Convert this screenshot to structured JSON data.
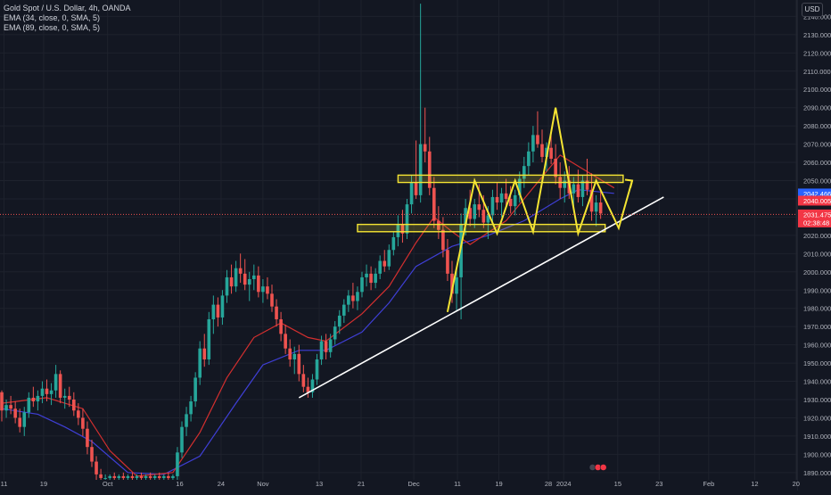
{
  "header": {
    "symbol_line": "Gold Spot / U.S. Dollar, 4h, OANDA",
    "indicators": [
      "EMA (34, close, 0, SMA, 5)",
      "EMA (89, close, 0, SMA, 5)"
    ],
    "currency": "USD"
  },
  "colors": {
    "background": "#131722",
    "grid": "#1e222d",
    "candle_up": "#26a69a",
    "candle_down": "#ef5350",
    "ema34": "#d32f2f",
    "ema89": "#3f3fd6",
    "drawing_yellow": "#f5e533",
    "trendline": "#ffffff",
    "tag_blue": "#2962ff",
    "tag_red": "#f23645"
  },
  "chart_data": {
    "type": "candlestick",
    "title": "Gold Spot / U.S. Dollar, 4h, OANDA",
    "ylim": [
      1886,
      2149
    ],
    "y_ticks": [
      2140,
      2130,
      2120,
      2110,
      2100,
      2090,
      2080,
      2070,
      2060,
      2050,
      2040,
      2030,
      2020,
      2010,
      2000,
      1990,
      1980,
      1970,
      1960,
      1950,
      1940,
      1930,
      1920,
      1910,
      1900,
      1890
    ],
    "y_tick_labels": [
      "2140.000",
      "2130.000",
      "2120.000",
      "2110.000",
      "2100.000",
      "2090.000",
      "2080.000",
      "2070.000",
      "2060.000",
      "2050.000",
      "2040.000",
      "2030.000",
      "2020.000",
      "2010.000",
      "2000.000",
      "1990.000",
      "1980.000",
      "1970.000",
      "1960.000",
      "1950.000",
      "1940.000",
      "1930.000",
      "1920.000",
      "1910.000",
      "1900.000",
      "1890.000"
    ],
    "x_ticks": [
      {
        "label": "11",
        "pos": 0.5
      },
      {
        "label": "19",
        "pos": 9.3
      },
      {
        "label": "Oct",
        "pos": 23.5
      },
      {
        "label": "16",
        "pos": 39.5
      },
      {
        "label": "24",
        "pos": 48.7
      },
      {
        "label": "Nov",
        "pos": 58
      },
      {
        "label": "13",
        "pos": 70.5
      },
      {
        "label": "21",
        "pos": 79.8
      },
      {
        "label": "Dec",
        "pos": 91.5
      },
      {
        "label": "11",
        "pos": 101.2
      },
      {
        "label": "19",
        "pos": 110.4
      },
      {
        "label": "28",
        "pos": 121.4
      },
      {
        "label": "2024",
        "pos": 124.8
      },
      {
        "label": "15",
        "pos": 136.8
      },
      {
        "label": "23",
        "pos": 146
      },
      {
        "label": "Feb",
        "pos": 157
      },
      {
        "label": "12",
        "pos": 167.2
      },
      {
        "label": "20",
        "pos": 176.4
      }
    ],
    "price_tags": [
      {
        "label": "2042.466",
        "value": 2042.466,
        "series": "EMA (89, close, 0, SMA, 5)"
      },
      {
        "label": "2040.005",
        "value": 2040.005,
        "series": "EMA (34, close, 0, SMA, 5)"
      },
      {
        "label": "2031.475",
        "value": 2031.475,
        "series": "last price"
      },
      {
        "label": "02:38:48",
        "value": 2027.5,
        "series": "countdown"
      }
    ],
    "last_price": 2031.475,
    "candles": [
      [
        1934,
        1935,
        1918,
        1924
      ],
      [
        1924,
        1930,
        1920,
        1927
      ],
      [
        1927,
        1932,
        1922,
        1925
      ],
      [
        1925,
        1929,
        1917,
        1920
      ],
      [
        1920,
        1925,
        1912,
        1915
      ],
      [
        1915,
        1926,
        1910,
        1923
      ],
      [
        1923,
        1934,
        1920,
        1931
      ],
      [
        1931,
        1937,
        1926,
        1929
      ],
      [
        1929,
        1935,
        1924,
        1932
      ],
      [
        1932,
        1940,
        1928,
        1936
      ],
      [
        1936,
        1941,
        1929,
        1933
      ],
      [
        1933,
        1939,
        1927,
        1935
      ],
      [
        1935,
        1949,
        1931,
        1944
      ],
      [
        1944,
        1946,
        1928,
        1931
      ],
      [
        1931,
        1936,
        1925,
        1932
      ],
      [
        1932,
        1937,
        1926,
        1930
      ],
      [
        1930,
        1934,
        1921,
        1924
      ],
      [
        1924,
        1928,
        1916,
        1920
      ],
      [
        1920,
        1925,
        1910,
        1914
      ],
      [
        1914,
        1918,
        1900,
        1904
      ],
      [
        1904,
        1908,
        1893,
        1896
      ],
      [
        1896,
        1899,
        1886,
        1889
      ],
      [
        1889,
        1892,
        1886,
        1887
      ],
      [
        1887,
        1889,
        1886,
        1887
      ],
      [
        1887,
        1889,
        1886,
        1888
      ],
      [
        1888,
        1890,
        1886,
        1887
      ],
      [
        1887,
        1889,
        1886,
        1888
      ],
      [
        1888,
        1890,
        1886,
        1887
      ],
      [
        1887,
        1889,
        1886,
        1888
      ],
      [
        1888,
        1890,
        1886,
        1887
      ],
      [
        1887,
        1889,
        1886,
        1888
      ],
      [
        1888,
        1890,
        1886,
        1887
      ],
      [
        1887,
        1889,
        1886,
        1888
      ],
      [
        1888,
        1890,
        1886,
        1887
      ],
      [
        1887,
        1889,
        1886,
        1888
      ],
      [
        1888,
        1890,
        1886,
        1887
      ],
      [
        1887,
        1889,
        1886,
        1888
      ],
      [
        1888,
        1890,
        1886,
        1887
      ],
      [
        1887,
        1889,
        1886,
        1888
      ],
      [
        1888,
        1904,
        1886,
        1901
      ],
      [
        1901,
        1918,
        1898,
        1915
      ],
      [
        1915,
        1926,
        1910,
        1922
      ],
      [
        1922,
        1932,
        1918,
        1929
      ],
      [
        1929,
        1945,
        1926,
        1942
      ],
      [
        1942,
        1962,
        1938,
        1958
      ],
      [
        1958,
        1966,
        1948,
        1952
      ],
      [
        1952,
        1978,
        1949,
        1974
      ],
      [
        1974,
        1987,
        1966,
        1982
      ],
      [
        1982,
        1986,
        1970,
        1975
      ],
      [
        1975,
        1990,
        1971,
        1987
      ],
      [
        1987,
        2001,
        1983,
        1997
      ],
      [
        1997,
        2004,
        1988,
        1992
      ],
      [
        1992,
        2006,
        1989,
        2002
      ],
      [
        2002,
        2010,
        1994,
        1999
      ],
      [
        1999,
        2007,
        1990,
        1993
      ],
      [
        1993,
        2000,
        1984,
        1996
      ],
      [
        1996,
        2004,
        1990,
        1998
      ],
      [
        1998,
        2003,
        1986,
        1989
      ],
      [
        1989,
        1996,
        1983,
        1992
      ],
      [
        1992,
        1997,
        1985,
        1988
      ],
      [
        1988,
        1993,
        1978,
        1981
      ],
      [
        1981,
        1985,
        1970,
        1974
      ],
      [
        1974,
        1978,
        1962,
        1966
      ],
      [
        1966,
        1971,
        1955,
        1958
      ],
      [
        1958,
        1963,
        1948,
        1952
      ],
      [
        1952,
        1959,
        1944,
        1955
      ],
      [
        1955,
        1960,
        1940,
        1944
      ],
      [
        1944,
        1949,
        1934,
        1937
      ],
      [
        1937,
        1942,
        1931,
        1934
      ],
      [
        1934,
        1944,
        1931,
        1941
      ],
      [
        1941,
        1955,
        1938,
        1952
      ],
      [
        1952,
        1965,
        1949,
        1962
      ],
      [
        1962,
        1966,
        1952,
        1956
      ],
      [
        1956,
        1966,
        1953,
        1963
      ],
      [
        1963,
        1973,
        1960,
        1970
      ],
      [
        1970,
        1979,
        1966,
        1976
      ],
      [
        1976,
        1985,
        1972,
        1982
      ],
      [
        1982,
        1990,
        1978,
        1987
      ],
      [
        1987,
        1994,
        1980,
        1984
      ],
      [
        1984,
        1992,
        1979,
        1989
      ],
      [
        1989,
        2000,
        1986,
        1997
      ],
      [
        1997,
        2004,
        1992,
        1999
      ],
      [
        1999,
        2003,
        1990,
        1994
      ],
      [
        1994,
        2002,
        1991,
        1999
      ],
      [
        1999,
        2009,
        1996,
        2006
      ],
      [
        2006,
        2012,
        2000,
        2003
      ],
      [
        2003,
        2015,
        2001,
        2012
      ],
      [
        2012,
        2022,
        2009,
        2019
      ],
      [
        2019,
        2031,
        2014,
        2026
      ],
      [
        2026,
        2034,
        2016,
        2021
      ],
      [
        2021,
        2040,
        2018,
        2037
      ],
      [
        2037,
        2053,
        2032,
        2049
      ],
      [
        2049,
        2072,
        2040,
        2042
      ],
      [
        2042,
        2147,
        2038,
        2070
      ],
      [
        2070,
        2090,
        2060,
        2066
      ],
      [
        2066,
        2074,
        2042,
        2046
      ],
      [
        2046,
        2052,
        2024,
        2028
      ],
      [
        2028,
        2036,
        2018,
        2023
      ],
      [
        2023,
        2030,
        2008,
        2012
      ],
      [
        2012,
        2018,
        1995,
        1999
      ],
      [
        1999,
        2006,
        1983,
        1988
      ],
      [
        1988,
        2002,
        1979,
        1997
      ],
      [
        1997,
        2032,
        1974,
        2026
      ],
      [
        2026,
        2040,
        2020,
        2035
      ],
      [
        2035,
        2045,
        2025,
        2029
      ],
      [
        2029,
        2040,
        2024,
        2037
      ],
      [
        2037,
        2048,
        2030,
        2034
      ],
      [
        2034,
        2042,
        2024,
        2027
      ],
      [
        2027,
        2036,
        2018,
        2031
      ],
      [
        2031,
        2045,
        2027,
        2041
      ],
      [
        2041,
        2049,
        2034,
        2038
      ],
      [
        2038,
        2046,
        2030,
        2043
      ],
      [
        2043,
        2051,
        2035,
        2040
      ],
      [
        2040,
        2047,
        2032,
        2036
      ],
      [
        2036,
        2045,
        2031,
        2042
      ],
      [
        2042,
        2055,
        2038,
        2051
      ],
      [
        2051,
        2063,
        2046,
        2058
      ],
      [
        2058,
        2071,
        2053,
        2066
      ],
      [
        2066,
        2080,
        2060,
        2075
      ],
      [
        2075,
        2088,
        2068,
        2070
      ],
      [
        2070,
        2078,
        2060,
        2063
      ],
      [
        2063,
        2071,
        2055,
        2068
      ],
      [
        2068,
        2077,
        2059,
        2062
      ],
      [
        2062,
        2070,
        2048,
        2052
      ],
      [
        2052,
        2060,
        2040,
        2046
      ],
      [
        2046,
        2055,
        2038,
        2050
      ],
      [
        2050,
        2058,
        2040,
        2043
      ],
      [
        2043,
        2052,
        2035,
        2048
      ],
      [
        2048,
        2056,
        2038,
        2041
      ],
      [
        2041,
        2053,
        2036,
        2050
      ],
      [
        2050,
        2062,
        2042,
        2045
      ],
      [
        2045,
        2054,
        2028,
        2033
      ],
      [
        2033,
        2042,
        2025,
        2038
      ],
      [
        2038,
        2045,
        2029,
        2032
      ]
    ],
    "ema34": [
      [
        0,
        1928
      ],
      [
        10,
        1931
      ],
      [
        18,
        1925
      ],
      [
        24,
        1902
      ],
      [
        30,
        1888
      ],
      [
        38,
        1890
      ],
      [
        44,
        1912
      ],
      [
        50,
        1942
      ],
      [
        56,
        1964
      ],
      [
        62,
        1972
      ],
      [
        68,
        1964
      ],
      [
        72,
        1962
      ],
      [
        80,
        1977
      ],
      [
        86,
        1992
      ],
      [
        92,
        2016
      ],
      [
        96,
        2030
      ],
      [
        100,
        2022
      ],
      [
        104,
        2015
      ],
      [
        112,
        2028
      ],
      [
        120,
        2052
      ],
      [
        124,
        2064
      ],
      [
        128,
        2058
      ],
      [
        136,
        2046
      ]
    ],
    "ema89": [
      [
        0,
        1925
      ],
      [
        8,
        1922
      ],
      [
        14,
        1915
      ],
      [
        20,
        1907
      ],
      [
        28,
        1890
      ],
      [
        36,
        1889
      ],
      [
        44,
        1899
      ],
      [
        52,
        1928
      ],
      [
        58,
        1949
      ],
      [
        66,
        1957
      ],
      [
        72,
        1957
      ],
      [
        80,
        1967
      ],
      [
        86,
        1983
      ],
      [
        92,
        2003
      ],
      [
        100,
        2014
      ],
      [
        108,
        2020
      ],
      [
        116,
        2028
      ],
      [
        124,
        2040
      ],
      [
        128,
        2045
      ],
      [
        136,
        2043
      ]
    ],
    "drawings": {
      "resistance_box": {
        "x0": 88,
        "x1": 138,
        "y0": 2049,
        "y1": 2053
      },
      "support_box": {
        "x0": 79,
        "x1": 134,
        "y0": 2022,
        "y1": 2026
      },
      "trendline": [
        [
          66,
          1931
        ],
        [
          147,
          2041
        ]
      ],
      "zigzag": [
        [
          99,
          1978
        ],
        [
          105,
          2050
        ],
        [
          110,
          2021
        ],
        [
          114,
          2050
        ],
        [
          118,
          2022
        ],
        [
          123,
          2090
        ],
        [
          128,
          2021
        ],
        [
          132,
          2050
        ],
        [
          137,
          2024
        ],
        [
          140,
          2050
        ]
      ]
    }
  }
}
